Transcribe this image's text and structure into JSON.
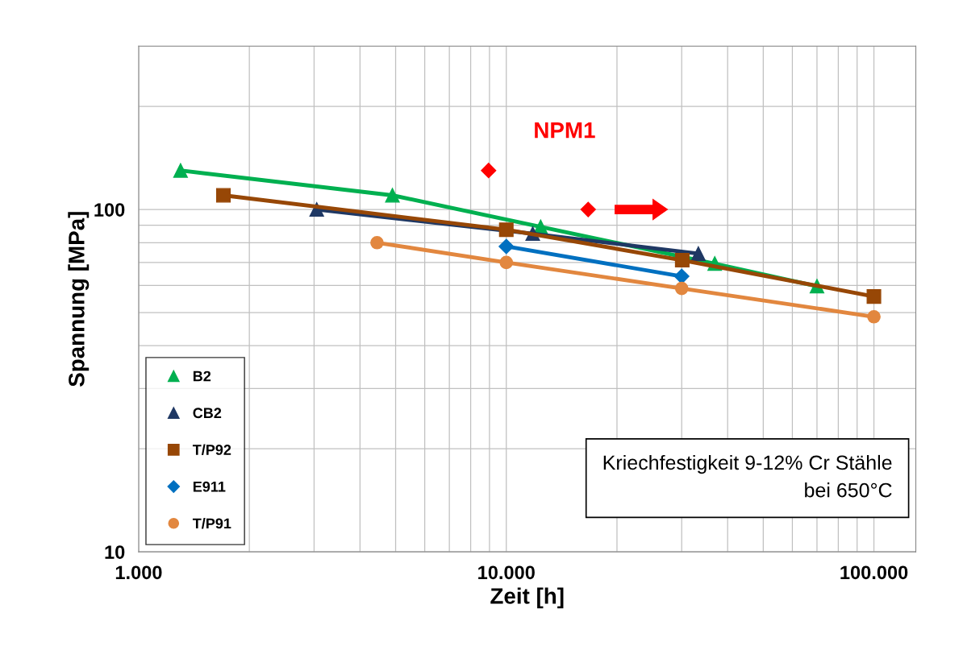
{
  "chart_data": {
    "type": "line",
    "xlabel": "Zeit [h]",
    "ylabel": "Spannung [MPa]",
    "log": "xy",
    "grid": true,
    "legend": "bottom left",
    "xlim": [
      1000,
      130000
    ],
    "ylim": [
      10,
      300
    ],
    "xticks": [
      {
        "value": 1000,
        "label": "1.000"
      },
      {
        "value": 10000,
        "label": "10.000"
      },
      {
        "value": 100000,
        "label": "100.000"
      }
    ],
    "yticks": [
      10,
      100
    ],
    "annotations": [
      "Kriechfestigkeit 9-12% Cr Stähle\nbei 650°C"
    ],
    "series": [
      {
        "name": "B2",
        "color": "#00b050",
        "marker": "triangle",
        "x": [
          1300,
          4900,
          12400,
          36900,
          70000
        ],
        "values": [
          130,
          110,
          89,
          69.5,
          59.7
        ]
      },
      {
        "name": "CB2",
        "color": "#1f3864",
        "marker": "triangle",
        "x": [
          3050,
          11800,
          33300
        ],
        "values": [
          100,
          85,
          74.3
        ]
      },
      {
        "name": "T/P92",
        "color": "#974706",
        "marker": "square",
        "x": [
          1700,
          10000,
          30100,
          100000
        ],
        "values": [
          110,
          87.3,
          71.1,
          55.7
        ]
      },
      {
        "name": "E911",
        "color": "#0070c0",
        "marker": "diamond",
        "x": [
          10000,
          30000
        ],
        "values": [
          78,
          63.8
        ]
      },
      {
        "name": "T/P91",
        "color": "#e2873f",
        "marker": "circle",
        "x": [
          4450,
          10000,
          30000,
          100000
        ],
        "values": [
          80,
          70,
          58.8,
          48.6
        ]
      },
      {
        "name": "NPM1",
        "type": "scatter",
        "color": "#ff0000",
        "marker": "diamond",
        "x": [
          8950,
          16700
        ],
        "values": [
          130,
          100
        ]
      }
    ]
  }
}
